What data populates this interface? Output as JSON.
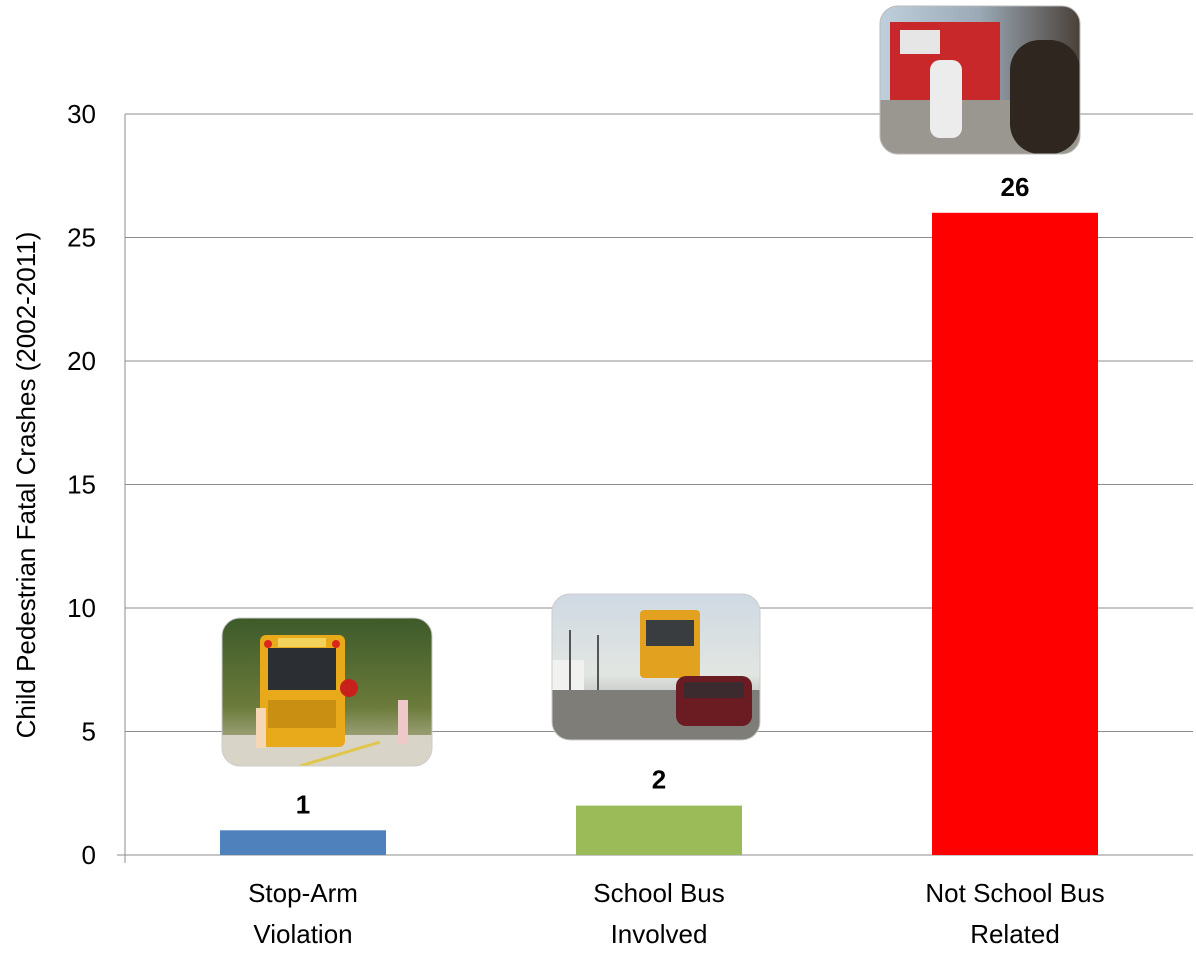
{
  "chart_data": {
    "type": "bar",
    "title": "",
    "ylabel": "Child Pedestrian Fatal Crashes (2002-2011)",
    "xlabel": "",
    "ylim": [
      0,
      30
    ],
    "yticks": [
      0,
      5,
      10,
      15,
      20,
      25,
      30
    ],
    "grid": true,
    "legend": "none",
    "categories": [
      [
        "Stop-Arm",
        "Violation"
      ],
      [
        "School Bus",
        "Involved"
      ],
      [
        "Not School Bus",
        "Related"
      ]
    ],
    "values": [
      1,
      2,
      26
    ],
    "data_labels": [
      "1",
      "2",
      "26"
    ],
    "colors": [
      "#4F81BD",
      "#9BBB59",
      "#FF0000"
    ],
    "photos": [
      "school-bus-stop-arm-photo",
      "school-bus-on-road-photo",
      "fire-truck-street-photo"
    ]
  }
}
